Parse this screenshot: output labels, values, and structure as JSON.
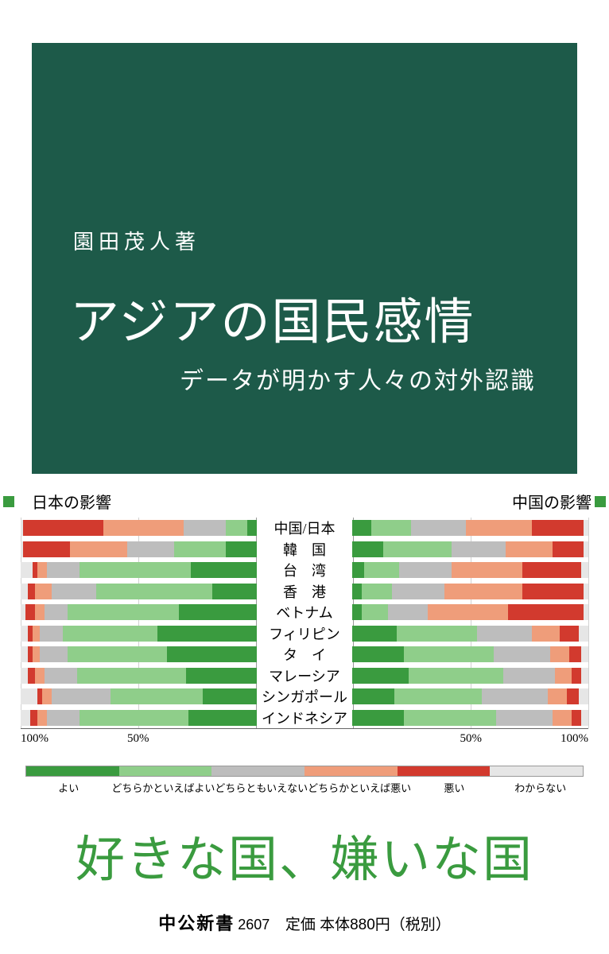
{
  "panel": {
    "bg_color": "#1d5a49",
    "author": "園田茂人著",
    "title": "アジアの国民感情",
    "subtitle": "データが明かす人々の対外認識"
  },
  "chart": {
    "type": "diverging-stacked-bar",
    "header_left": "日本の影響",
    "header_right": "中国の影響",
    "countries": [
      "中国/日本",
      "韓　国",
      "台　湾",
      "香　港",
      "ベトナム",
      "フィリピン",
      "タ　イ",
      "マレーシア",
      "シンガポール",
      "インドネシア"
    ],
    "categories": [
      "よい",
      "どちらかといえばよい",
      "どちらともいえない",
      "どちらかといえば悪い",
      "悪い",
      "わからない"
    ],
    "colors": {
      "good": "#3a9b3f",
      "lean_good": "#8fce8a",
      "neutral": "#bdbdbd",
      "lean_bad": "#ef9d7a",
      "bad": "#d23a2e",
      "dk": "#e6e6e6"
    },
    "left_data": [
      [
        4,
        9,
        18,
        34,
        34,
        1
      ],
      [
        13,
        22,
        20,
        24,
        20,
        1
      ],
      [
        28,
        47,
        14,
        4,
        2,
        5
      ],
      [
        19,
        49,
        19,
        7,
        3,
        3
      ],
      [
        33,
        47,
        10,
        4,
        4,
        2
      ],
      [
        42,
        40,
        10,
        3,
        2,
        3
      ],
      [
        38,
        42,
        12,
        3,
        2,
        3
      ],
      [
        30,
        46,
        14,
        4,
        3,
        3
      ],
      [
        23,
        39,
        25,
        4,
        2,
        7
      ],
      [
        29,
        46,
        14,
        4,
        3,
        4
      ]
    ],
    "right_data": [
      [
        8,
        17,
        23,
        28,
        22,
        2
      ],
      [
        13,
        29,
        23,
        20,
        13,
        2
      ],
      [
        5,
        15,
        22,
        30,
        25,
        3
      ],
      [
        4,
        13,
        22,
        33,
        26,
        2
      ],
      [
        4,
        11,
        17,
        34,
        32,
        2
      ],
      [
        19,
        34,
        23,
        12,
        8,
        4
      ],
      [
        22,
        38,
        24,
        8,
        5,
        3
      ],
      [
        24,
        40,
        22,
        7,
        4,
        3
      ],
      [
        18,
        37,
        28,
        8,
        5,
        4
      ],
      [
        22,
        39,
        24,
        8,
        4,
        3
      ]
    ],
    "xaxis_ticks": [
      "100%",
      "50%",
      "50%",
      "100%"
    ],
    "xaxis_positions_pct": [
      0,
      25,
      75,
      100
    ]
  },
  "tagline": {
    "text": "好きな国、嫌いな国",
    "color": "#3a9b3f"
  },
  "publisher": {
    "name": "中公新書",
    "number": "2607",
    "price": "定価 本体880円（税別）"
  }
}
